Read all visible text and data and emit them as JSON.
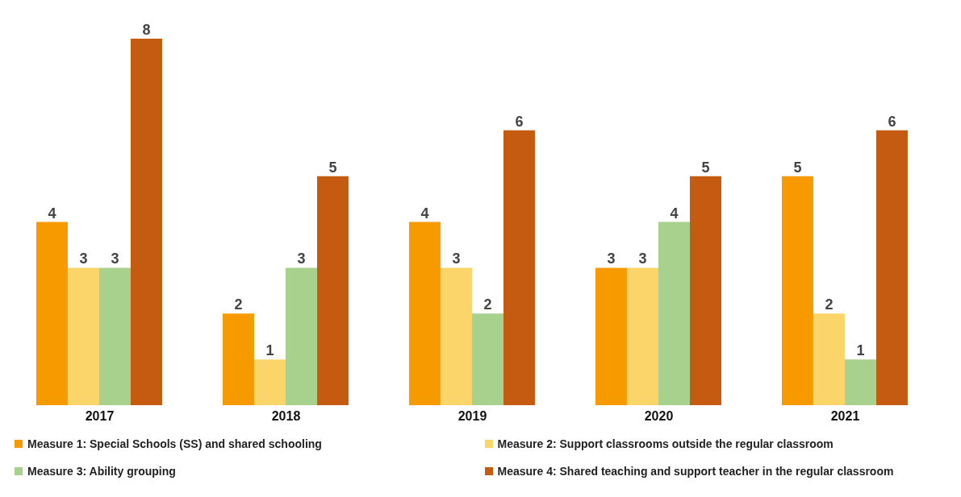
{
  "chart_data": {
    "type": "bar",
    "categories": [
      "2017",
      "2018",
      "2019",
      "2020",
      "2021"
    ],
    "series": [
      {
        "name": "Measure 1: Special Schools (SS) and shared schooling",
        "color": "#f79a00",
        "values": [
          4,
          2,
          4,
          3,
          5
        ]
      },
      {
        "name": "Measure 2: Support classrooms outside the regular classroom",
        "color": "#fbd46a",
        "values": [
          3,
          1,
          3,
          3,
          2
        ]
      },
      {
        "name": "Measure 3: Ability grouping",
        "color": "#a9d18e",
        "values": [
          3,
          3,
          2,
          4,
          1
        ]
      },
      {
        "name": "Measure 4: Shared teaching and support teacher in the regular classroom",
        "color": "#c55a11",
        "values": [
          8,
          5,
          6,
          5,
          6
        ]
      }
    ],
    "data_labels": true,
    "legend": "bottom",
    "grid": false
  }
}
